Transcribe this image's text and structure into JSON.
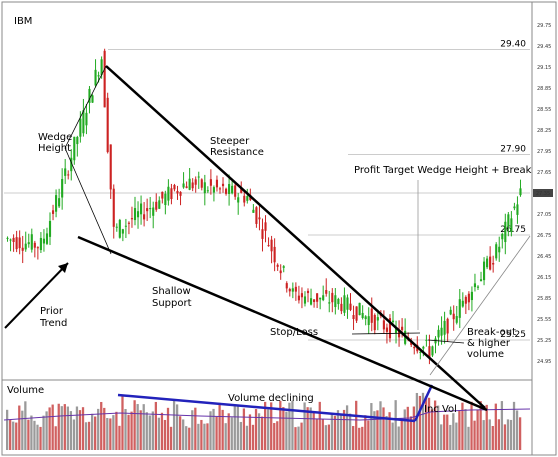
{
  "chart_data": {
    "type": "candlestick",
    "title": "IBM",
    "grid": true,
    "y_axis": {
      "side": "right",
      "ticks": [
        "29.75",
        "29.45",
        "29.15",
        "28.85",
        "28.55",
        "28.25",
        "27.95",
        "27.65",
        "27.35",
        "27.05",
        "26.75",
        "26.45",
        "26.15",
        "25.85",
        "25.55",
        "25.25",
        "24.95"
      ],
      "range": [
        24.85,
        29.85
      ],
      "current_price_label": "27.35"
    },
    "price_levels": [
      {
        "value": 29.4,
        "label": "29.40"
      },
      {
        "value": 27.9,
        "label": "27.90"
      },
      {
        "value": 26.75,
        "label": "26.75"
      },
      {
        "value": 25.25,
        "label": "25.25"
      }
    ],
    "price_series": {
      "segments": [
        {
          "from_bar": 0,
          "to_bar": 12,
          "start": 26.7,
          "end": 26.6
        },
        {
          "from_bar": 12,
          "to_bar": 20,
          "start": 26.6,
          "end": 27.6
        },
        {
          "from_bar": 20,
          "to_bar": 32,
          "start": 27.6,
          "end": 29.3
        },
        {
          "from_bar": 32,
          "to_bar": 36,
          "start": 29.3,
          "end": 26.8
        },
        {
          "from_bar": 36,
          "to_bar": 60,
          "start": 26.8,
          "end": 27.5
        },
        {
          "from_bar": 60,
          "to_bar": 80,
          "start": 27.5,
          "end": 27.3
        },
        {
          "from_bar": 80,
          "to_bar": 95,
          "start": 27.3,
          "end": 25.9
        },
        {
          "from_bar": 95,
          "to_bar": 110,
          "start": 25.9,
          "end": 25.8
        },
        {
          "from_bar": 110,
          "to_bar": 132,
          "start": 25.8,
          "end": 25.3
        },
        {
          "from_bar": 132,
          "to_bar": 140,
          "start": 25.3,
          "end": 25.1
        },
        {
          "from_bar": 140,
          "to_bar": 162,
          "start": 25.1,
          "end": 26.5
        },
        {
          "from_bar": 162,
          "to_bar": 170,
          "start": 26.5,
          "end": 27.35
        }
      ],
      "bar_count": 170
    },
    "volume": {
      "label": "Volume",
      "annotation": "Volume declining",
      "spike_label": "Inc Vol"
    },
    "annotations": {
      "wedge_height": "Wedge\nHeight",
      "steeper_resistance": "Steeper\nResistance",
      "profit_target": "Profit Target Wedge Height + Break",
      "prior_trend": "Prior\nTrend",
      "shallow_support": "Shallow\nSupport",
      "stop_loss": "Stop/Loss",
      "breakout": "Break-out\n& higher\nvolume"
    },
    "colors": {
      "up": "#22aa22",
      "down": "#cc2222",
      "grid": "#d8d8d8",
      "volume_up": "#9a9a9a",
      "volume_down": "#d06060",
      "volume_line": "#2222bb",
      "avg_line": "#6633aa"
    }
  }
}
